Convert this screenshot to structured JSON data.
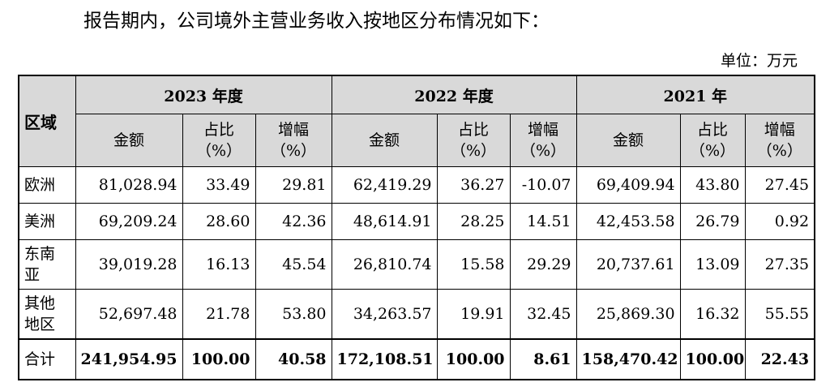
{
  "intro_text": "报告期内，公司境外主营业务收入按地区分布情况如下：",
  "unit_text": "单位：万元",
  "table": {
    "region_header": "区域",
    "years": [
      "2023 年度",
      "2022 年度",
      "2021 年"
    ],
    "subheaders": {
      "amount": "金额",
      "share": "占比",
      "growth": "增幅",
      "pct": "（%）"
    },
    "rows": [
      {
        "region": "欧洲",
        "values": [
          "81,028.94",
          "33.49",
          "29.81",
          "62,419.29",
          "36.27",
          "-10.07",
          "69,409.94",
          "43.80",
          "27.45"
        ]
      },
      {
        "region": "美洲",
        "values": [
          "69,209.24",
          "28.60",
          "42.36",
          "48,614.91",
          "28.25",
          "14.51",
          "42,453.58",
          "26.79",
          "0.92"
        ]
      },
      {
        "region": "东南亚",
        "values": [
          "39,019.28",
          "16.13",
          "45.54",
          "26,810.74",
          "15.58",
          "29.29",
          "20,737.61",
          "13.09",
          "27.35"
        ]
      },
      {
        "region": "其他地区",
        "values": [
          "52,697.48",
          "21.78",
          "53.80",
          "34,263.57",
          "19.91",
          "32.45",
          "25,869.30",
          "16.32",
          "55.55"
        ]
      }
    ],
    "total": {
      "region": "合计",
      "values": [
        "241,954.95",
        "100.00",
        "40.58",
        "172,108.51",
        "100.00",
        "8.61",
        "158,470.42",
        "100.00",
        "22.43"
      ]
    }
  }
}
